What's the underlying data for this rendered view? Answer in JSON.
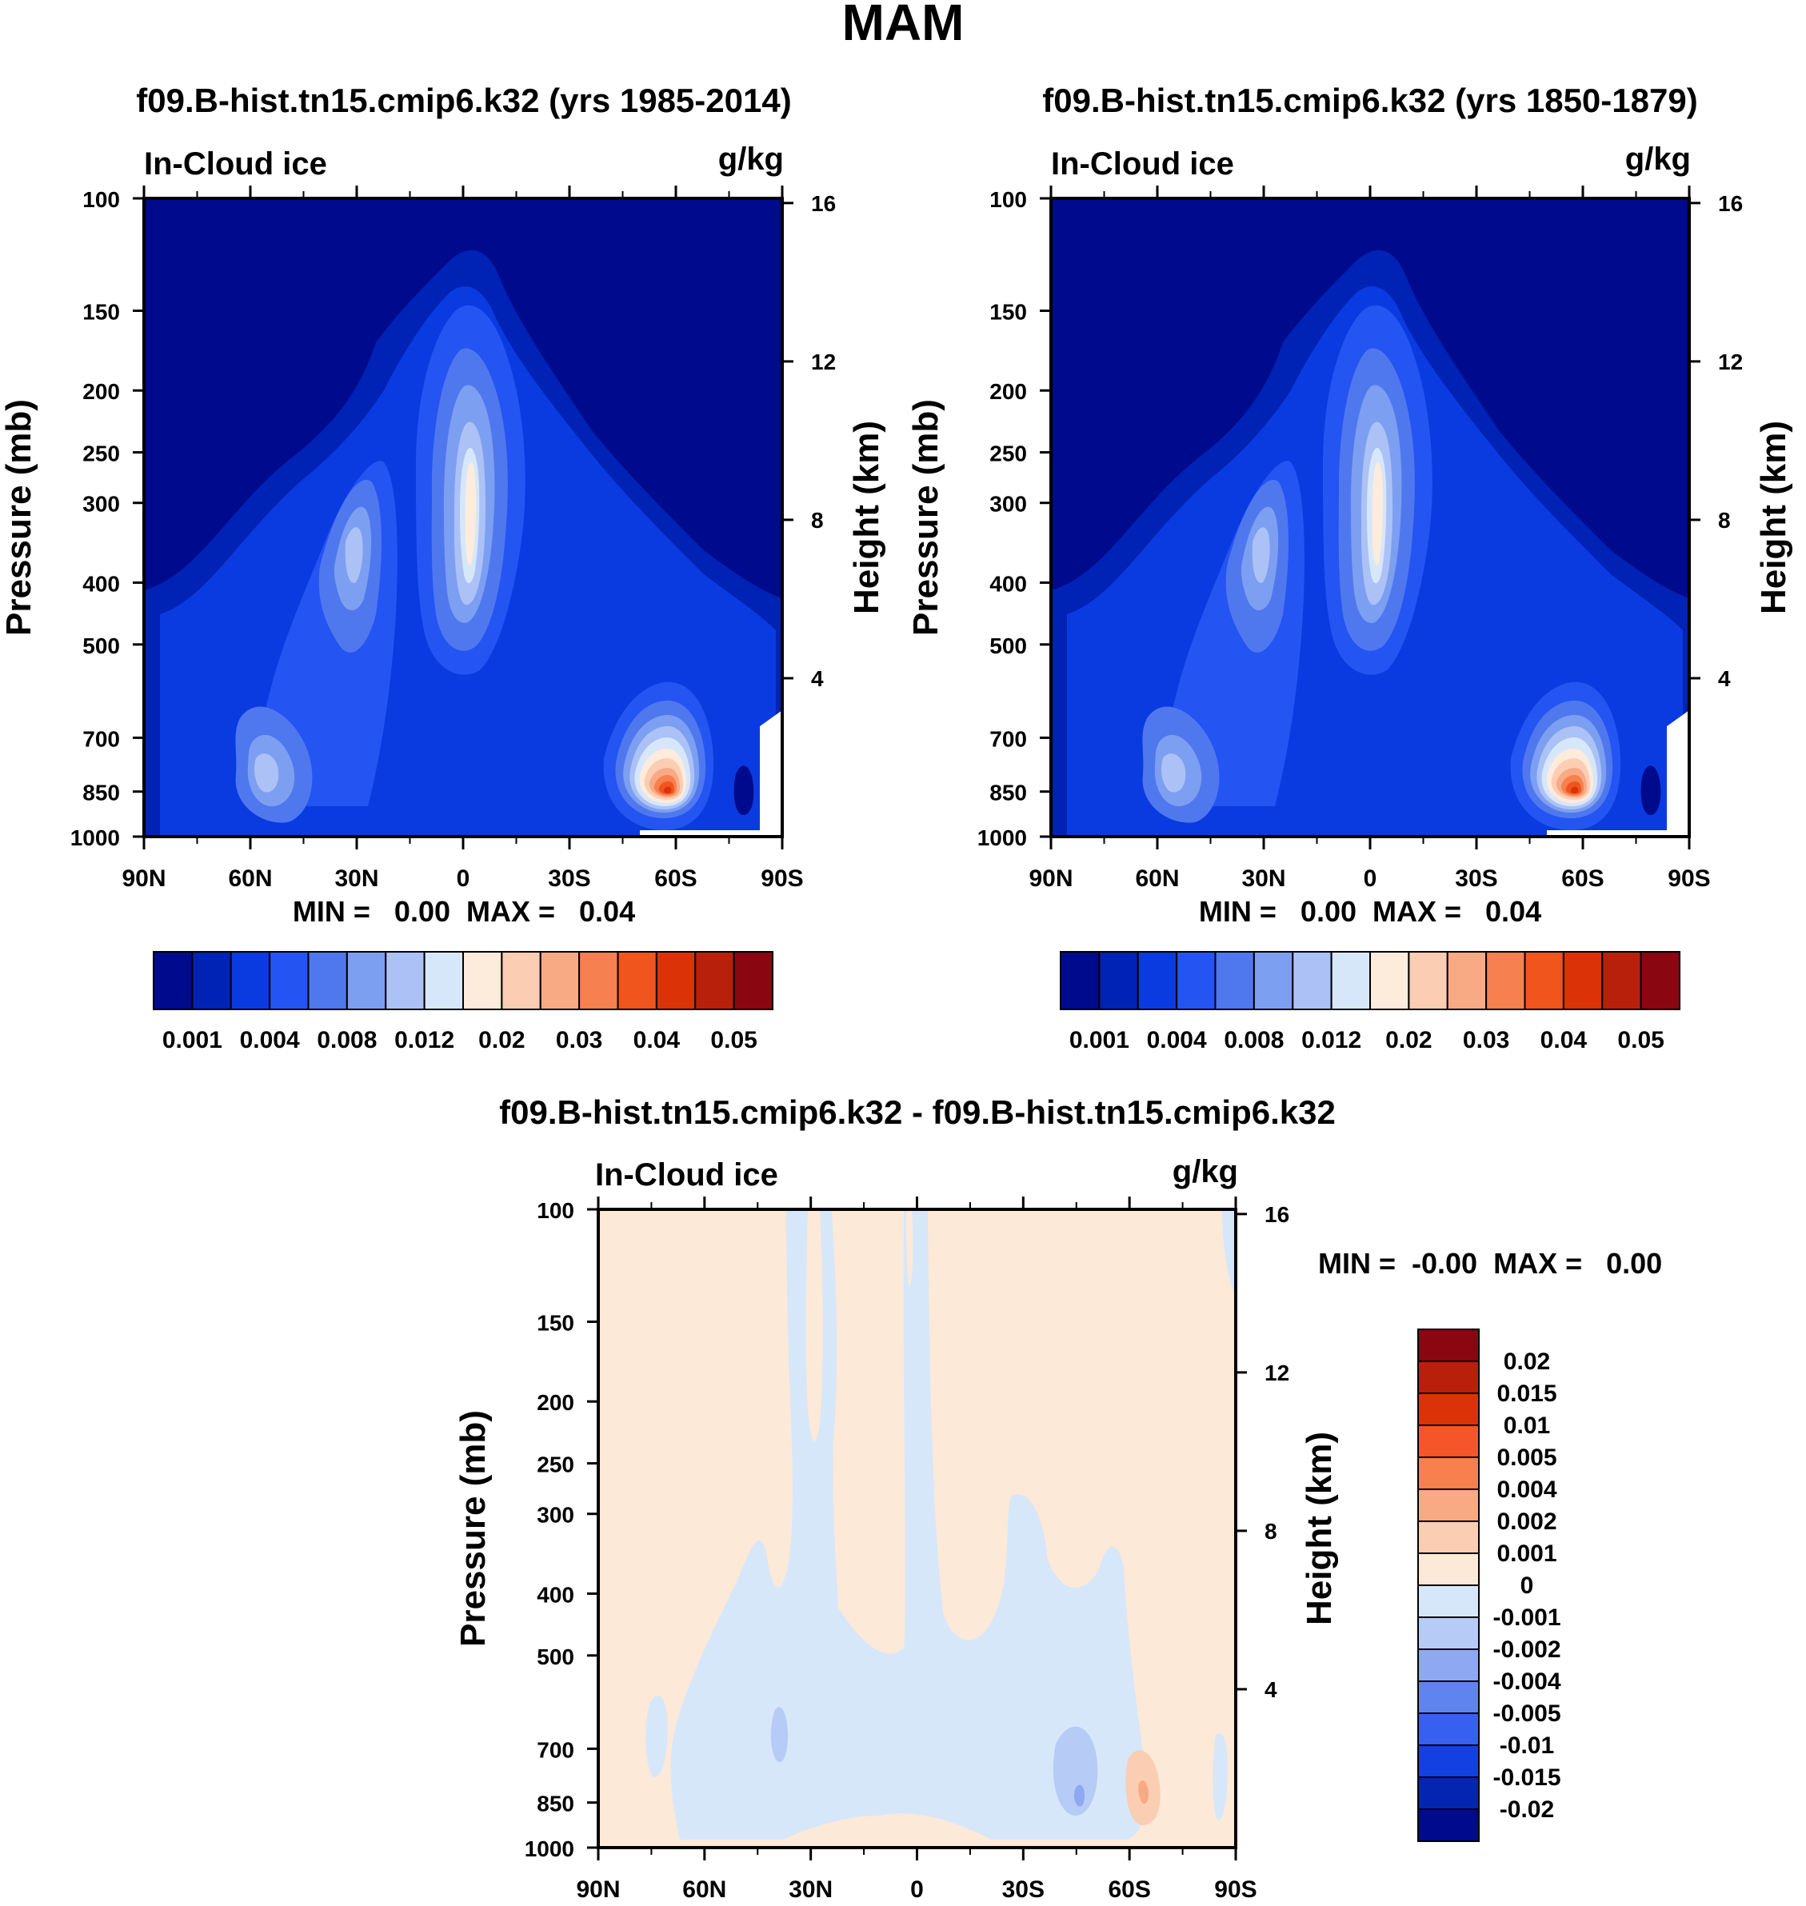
{
  "figure_title": "MAM",
  "chart_data": [
    {
      "type": "heatmap",
      "id": "panel-1985-2014",
      "title": "f09.B-hist.tn15.cmip6.k32 (yrs 1985-2014)",
      "variable": "In-Cloud ice",
      "units": "g/kg",
      "ylabel": "Pressure (mb)",
      "y2label": "Height (km)",
      "x_ticks": [
        "90N",
        "60N",
        "30N",
        "0",
        "30S",
        "60S",
        "90S"
      ],
      "x_range": [
        90,
        -90
      ],
      "y_ticks": [
        100,
        150,
        200,
        250,
        300,
        400,
        500,
        700,
        850,
        1000
      ],
      "y_range": [
        100,
        1000
      ],
      "height_ticks": [
        16,
        12,
        8,
        4
      ],
      "min_max_label": "MIN =   0.00  MAX =   0.04",
      "min": 0.0,
      "max": 0.04,
      "features": [
        {
          "name": "tropical maximum",
          "lat": -4,
          "pressure_top": 200,
          "pressure_bottom": 700,
          "peak": 0.02
        },
        {
          "name": "NH midlatitude band",
          "lat": 32,
          "pressure_top": 250,
          "pressure_bottom": 850,
          "peak": 0.012
        },
        {
          "name": "NH low-level maximum",
          "lat": 60,
          "pressure_top": 650,
          "pressure_bottom": 950,
          "peak": 0.012
        },
        {
          "name": "SH low-level maximum",
          "lat": -57,
          "pressure_top": 600,
          "pressure_bottom": 1000,
          "peak": 0.04
        }
      ],
      "colorbar": {
        "colors": [
          "#000a8c",
          "#0022b5",
          "#0a3be0",
          "#2454f2",
          "#4f78ef",
          "#7d9ff2",
          "#acc2f6",
          "#d7e7fa",
          "#fdebdc",
          "#fbcdb3",
          "#f8aa85",
          "#f6804f",
          "#f0551e",
          "#dc3208",
          "#b8200c",
          "#8a0610"
        ],
        "labels": [
          "0.001",
          "0.004",
          "0.008",
          "0.012",
          "0.02",
          "0.03",
          "0.04",
          "0.05"
        ]
      }
    },
    {
      "type": "heatmap",
      "id": "panel-1850-1879",
      "title": "f09.B-hist.tn15.cmip6.k32 (yrs 1850-1879)",
      "variable": "In-Cloud ice",
      "units": "g/kg",
      "ylabel": "Pressure (mb)",
      "y2label": "Height (km)",
      "x_ticks": [
        "90N",
        "60N",
        "30N",
        "0",
        "30S",
        "60S",
        "90S"
      ],
      "x_range": [
        90,
        -90
      ],
      "y_ticks": [
        100,
        150,
        200,
        250,
        300,
        400,
        500,
        700,
        850,
        1000
      ],
      "y_range": [
        100,
        1000
      ],
      "height_ticks": [
        16,
        12,
        8,
        4
      ],
      "min_max_label": "MIN =   0.00  MAX =   0.04",
      "min": 0.0,
      "max": 0.04,
      "features": [
        {
          "name": "tropical maximum",
          "lat": -4,
          "pressure_top": 200,
          "pressure_bottom": 700,
          "peak": 0.02
        },
        {
          "name": "NH midlatitude band",
          "lat": 32,
          "pressure_top": 250,
          "pressure_bottom": 850,
          "peak": 0.012
        },
        {
          "name": "NH low-level maximum",
          "lat": 60,
          "pressure_top": 650,
          "pressure_bottom": 950,
          "peak": 0.012
        },
        {
          "name": "SH low-level maximum",
          "lat": -57,
          "pressure_top": 600,
          "pressure_bottom": 1000,
          "peak": 0.04
        }
      ],
      "colorbar": {
        "colors": [
          "#000a8c",
          "#0022b5",
          "#0a3be0",
          "#2454f2",
          "#4f78ef",
          "#7d9ff2",
          "#acc2f6",
          "#d7e7fa",
          "#fdebdc",
          "#fbcdb3",
          "#f8aa85",
          "#f6804f",
          "#f0551e",
          "#dc3208",
          "#b8200c",
          "#8a0610"
        ],
        "labels": [
          "0.001",
          "0.004",
          "0.008",
          "0.012",
          "0.02",
          "0.03",
          "0.04",
          "0.05"
        ]
      }
    },
    {
      "type": "heatmap",
      "id": "panel-difference",
      "title": "f09.B-hist.tn15.cmip6.k32 - f09.B-hist.tn15.cmip6.k32",
      "variable": "In-Cloud ice",
      "units": "g/kg",
      "ylabel": "Pressure (mb)",
      "y2label": "Height (km)",
      "x_ticks": [
        "90N",
        "60N",
        "30N",
        "0",
        "30S",
        "60S",
        "90S"
      ],
      "x_range": [
        90,
        -90
      ],
      "y_ticks": [
        100,
        150,
        200,
        250,
        300,
        400,
        500,
        700,
        850,
        1000
      ],
      "y_range": [
        100,
        1000
      ],
      "height_ticks": [
        16,
        12,
        8,
        4
      ],
      "min_max_label": "MIN =  -0.00  MAX =   0.00",
      "min": -0.0,
      "max": 0.0,
      "colorbar": {
        "colors": [
          "#8a0610",
          "#b8200c",
          "#dc3208",
          "#f6552a",
          "#f8804f",
          "#f8aa85",
          "#fbcdb3",
          "#fde9d8",
          "#d7e7fa",
          "#b6ccf6",
          "#8ea8f2",
          "#5f84ee",
          "#3860f0",
          "#1340e0",
          "#0425b2",
          "#000a8c"
        ],
        "labels": [
          "0.02",
          "0.015",
          "0.01",
          "0.005",
          "0.004",
          "0.002",
          "0.001",
          "0",
          "-0.001",
          "-0.002",
          "-0.004",
          "-0.005",
          "-0.01",
          "-0.015",
          "-0.02"
        ]
      }
    }
  ]
}
